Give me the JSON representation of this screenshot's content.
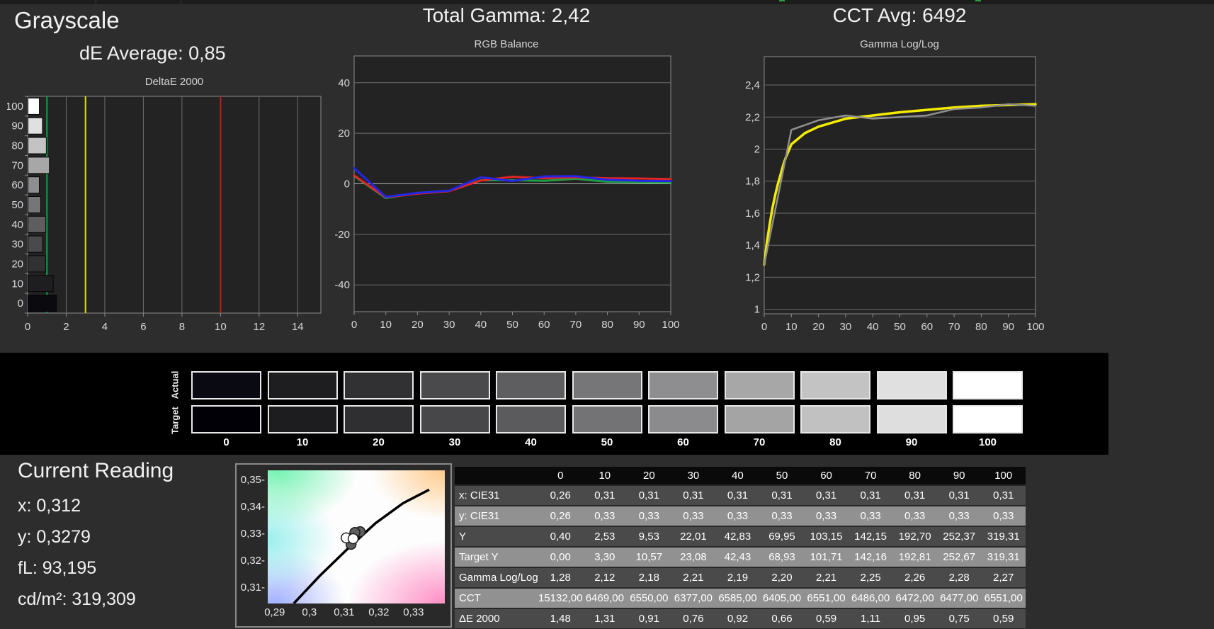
{
  "panels": {
    "grayscale": {
      "title": "Grayscale",
      "average_label": "dE Average: 0,85",
      "chart_title": "DeltaE 2000"
    },
    "rgb": {
      "title": "Total Gamma: 2,42",
      "chart_title": "RGB Balance"
    },
    "cct": {
      "title": "CCT Avg: 6492",
      "chart_title": "Gamma Log/Log"
    }
  },
  "swatch_strip": {
    "row_labels": [
      "Actual",
      "Target"
    ],
    "levels": [
      "0",
      "10",
      "20",
      "30",
      "40",
      "50",
      "60",
      "70",
      "80",
      "90",
      "100"
    ],
    "actual_colors": [
      "#0a0a12",
      "#1e1e20",
      "#313133",
      "#4a4a4c",
      "#5e5e60",
      "#767678",
      "#8e8e90",
      "#a7a7a7",
      "#c3c3c3",
      "#e0e0e0",
      "#ffffff"
    ],
    "target_colors": [
      "#000006",
      "#1d1d1f",
      "#2f2f31",
      "#474749",
      "#5b5b5d",
      "#737375",
      "#8b8b8d",
      "#a4a4a4",
      "#c1c1c1",
      "#dedede",
      "#ffffff"
    ]
  },
  "current_reading": {
    "title": "Current Reading",
    "readings": [
      {
        "label": "x:",
        "value": "0,312"
      },
      {
        "label": "y:",
        "value": "0,3279"
      },
      {
        "label": "fL:",
        "value": "93,195"
      },
      {
        "label": "cd/m²:",
        "value": "319,309"
      }
    ]
  },
  "cie_diagram": {
    "x_ticks": [
      {
        "v": 0.29,
        "label": "0,29"
      },
      {
        "v": 0.3,
        "label": "0,3"
      },
      {
        "v": 0.31,
        "label": "0,31"
      },
      {
        "v": 0.32,
        "label": "0,32"
      },
      {
        "v": 0.33,
        "label": "0,33"
      }
    ],
    "y_ticks": [
      {
        "v": 0.35,
        "label": "0,35"
      },
      {
        "v": 0.34,
        "label": "0,34"
      },
      {
        "v": 0.33,
        "label": "0,33"
      },
      {
        "v": 0.32,
        "label": "0,32"
      },
      {
        "v": 0.31,
        "label": "0,31"
      }
    ],
    "x_range": [
      0.288,
      0.339
    ],
    "y_range": [
      0.3042,
      0.3537
    ],
    "locus": [
      [
        0.2955,
        0.3042
      ],
      [
        0.303,
        0.3145
      ],
      [
        0.311,
        0.3245
      ],
      [
        0.319,
        0.334
      ],
      [
        0.327,
        0.3415
      ],
      [
        0.3345,
        0.3465
      ]
    ],
    "points_gray": [
      [
        0.3146,
        0.3309
      ],
      [
        0.312,
        0.3262
      ],
      [
        0.3131,
        0.3306
      ]
    ],
    "points_white": [
      [
        0.3106,
        0.3286
      ],
      [
        0.3126,
        0.3283
      ]
    ],
    "target_square": [
      0.3124,
      0.33
    ]
  },
  "table": {
    "header": [
      "",
      "0",
      "10",
      "20",
      "30",
      "40",
      "50",
      "60",
      "70",
      "80",
      "90",
      "100"
    ],
    "rows": [
      {
        "label": "x: CIE31",
        "values": [
          "0,26",
          "0,31",
          "0,31",
          "0,31",
          "0,31",
          "0,31",
          "0,31",
          "0,31",
          "0,31",
          "0,31",
          "0,31"
        ]
      },
      {
        "label": "y: CIE31",
        "values": [
          "0,26",
          "0,33",
          "0,33",
          "0,33",
          "0,33",
          "0,33",
          "0,33",
          "0,33",
          "0,33",
          "0,33",
          "0,33"
        ]
      },
      {
        "label": "Y",
        "values": [
          "0,40",
          "2,53",
          "9,53",
          "22,01",
          "42,83",
          "69,95",
          "103,15",
          "142,15",
          "192,70",
          "252,37",
          "319,31"
        ]
      },
      {
        "label": "Target Y",
        "values": [
          "0,00",
          "3,30",
          "10,57",
          "23,08",
          "42,43",
          "68,93",
          "101,71",
          "142,16",
          "192,81",
          "252,67",
          "319,31"
        ]
      },
      {
        "label": "Gamma Log/Log",
        "values": [
          "1,28",
          "2,12",
          "2,18",
          "2,21",
          "2,19",
          "2,20",
          "2,21",
          "2,25",
          "2,26",
          "2,28",
          "2,27"
        ]
      },
      {
        "label": "CCT",
        "values": [
          "15132,00",
          "6469,00",
          "6550,00",
          "6377,00",
          "6585,00",
          "6405,00",
          "6551,00",
          "6486,00",
          "6472,00",
          "6477,00",
          "6551,00"
        ]
      },
      {
        "label": "ΔE 2000",
        "values": [
          "1,48",
          "1,31",
          "0,91",
          "0,76",
          "0,92",
          "0,66",
          "0,59",
          "1,11",
          "0,95",
          "0,75",
          "0,59"
        ]
      }
    ]
  },
  "chart_data": [
    {
      "id": "deltae2000",
      "type": "bar",
      "orientation": "horizontal",
      "title": "DeltaE 2000",
      "categories": [
        "100",
        "90",
        "80",
        "70",
        "60",
        "50",
        "40",
        "30",
        "20",
        "10",
        "0"
      ],
      "values": [
        0.59,
        0.75,
        0.95,
        1.11,
        0.59,
        0.66,
        0.92,
        0.76,
        0.91,
        1.31,
        1.48
      ],
      "bar_colors": [
        "#ffffff",
        "#e0e0e0",
        "#c3c3c3",
        "#a7a7a7",
        "#8e8e90",
        "#767678",
        "#5e5e60",
        "#4a4a4c",
        "#313133",
        "#1e1e20",
        "#0a0a0f"
      ],
      "xlim": [
        0,
        15.2
      ],
      "x_ticks": [
        0,
        2,
        4,
        6,
        8,
        10,
        12,
        14
      ],
      "limit_lines": [
        {
          "name": "good-limit",
          "value": 1,
          "color": "#0da04e"
        },
        {
          "name": "warn-limit",
          "value": 3,
          "color": "#e8e000"
        },
        {
          "name": "fail-limit",
          "value": 10,
          "color": "#c01d1d"
        }
      ]
    },
    {
      "id": "rgb_balance",
      "type": "line",
      "title": "RGB Balance",
      "x": [
        0,
        10,
        20,
        30,
        40,
        50,
        60,
        70,
        80,
        90,
        100
      ],
      "ylim": [
        -50.6,
        50.6
      ],
      "y_ticks": [
        {
          "v": 40,
          "label": "40"
        },
        {
          "v": 20,
          "label": "20"
        },
        {
          "v": 0,
          "label": "0"
        },
        {
          "v": -20,
          "label": "-20"
        },
        {
          "v": -40,
          "label": "-40"
        }
      ],
      "x_ticks": [
        {
          "v": 0,
          "label": "0"
        },
        {
          "v": 10,
          "label": "10"
        },
        {
          "v": 20,
          "label": "20"
        },
        {
          "v": 30,
          "label": "30"
        },
        {
          "v": 40,
          "label": "40"
        },
        {
          "v": 50,
          "label": "50"
        },
        {
          "v": 60,
          "label": "60"
        },
        {
          "v": 70,
          "label": "70"
        },
        {
          "v": 80,
          "label": "80"
        },
        {
          "v": 90,
          "label": "90"
        },
        {
          "v": 100,
          "label": "100"
        }
      ],
      "series": [
        {
          "name": "green",
          "color": "#1f9e45",
          "width": 3,
          "values": [
            3.1,
            -5.6,
            -3.6,
            -2.8,
            1.4,
            1.4,
            1.2,
            2.0,
            0.8,
            0.6,
            0.5
          ]
        },
        {
          "name": "red",
          "color": "#e02525",
          "width": 3,
          "values": [
            3.3,
            -5.3,
            -3.9,
            -2.9,
            1.3,
            2.8,
            2.2,
            2.6,
            2.2,
            2.1,
            1.9
          ]
        },
        {
          "name": "blue",
          "color": "#2525e8",
          "width": 3,
          "values": [
            6.2,
            -5.2,
            -3.6,
            -2.7,
            2.6,
            1.1,
            2.9,
            3.0,
            1.6,
            1.2,
            1.1
          ]
        }
      ]
    },
    {
      "id": "gamma_loglog",
      "type": "line",
      "title": "Gamma Log/Log",
      "ylim": [
        0.972,
        2.577
      ],
      "y_ticks": [
        {
          "v": 2.4,
          "label": "2,4"
        },
        {
          "v": 2.2,
          "label": "2,2"
        },
        {
          "v": 2.0,
          "label": "2"
        },
        {
          "v": 1.8,
          "label": "1,8"
        },
        {
          "v": 1.6,
          "label": "1,6"
        },
        {
          "v": 1.4,
          "label": "1,4"
        },
        {
          "v": 1.2,
          "label": "1,2"
        },
        {
          "v": 1.0,
          "label": "1"
        }
      ],
      "x_ticks": [
        {
          "v": 0,
          "label": "0"
        },
        {
          "v": 10,
          "label": "10"
        },
        {
          "v": 20,
          "label": "20"
        },
        {
          "v": 30,
          "label": "30"
        },
        {
          "v": 40,
          "label": "40"
        },
        {
          "v": 50,
          "label": "50"
        },
        {
          "v": 60,
          "label": "60"
        },
        {
          "v": 70,
          "label": "70"
        },
        {
          "v": 80,
          "label": "80"
        },
        {
          "v": 90,
          "label": "90"
        },
        {
          "v": 100,
          "label": "100"
        }
      ],
      "series": [
        {
          "name": "target-gamma",
          "color": "#f4ec00",
          "width": 3.5,
          "x": [
            0,
            1,
            2,
            3,
            4,
            5,
            6,
            7,
            8,
            9,
            10,
            15,
            20,
            30,
            40,
            50,
            60,
            70,
            80,
            90,
            100
          ],
          "values": [
            1.28,
            1.42,
            1.53,
            1.63,
            1.71,
            1.78,
            1.84,
            1.9,
            1.95,
            1.99,
            2.03,
            2.1,
            2.14,
            2.19,
            2.21,
            2.23,
            2.245,
            2.26,
            2.27,
            2.275,
            2.28
          ]
        },
        {
          "name": "measured-gamma",
          "color": "#8f8f8f",
          "width": 2.5,
          "x": [
            0,
            10,
            20,
            30,
            40,
            50,
            60,
            70,
            80,
            90,
            100
          ],
          "values": [
            1.28,
            2.12,
            2.18,
            2.21,
            2.19,
            2.2,
            2.21,
            2.25,
            2.26,
            2.28,
            2.27
          ]
        }
      ]
    }
  ]
}
